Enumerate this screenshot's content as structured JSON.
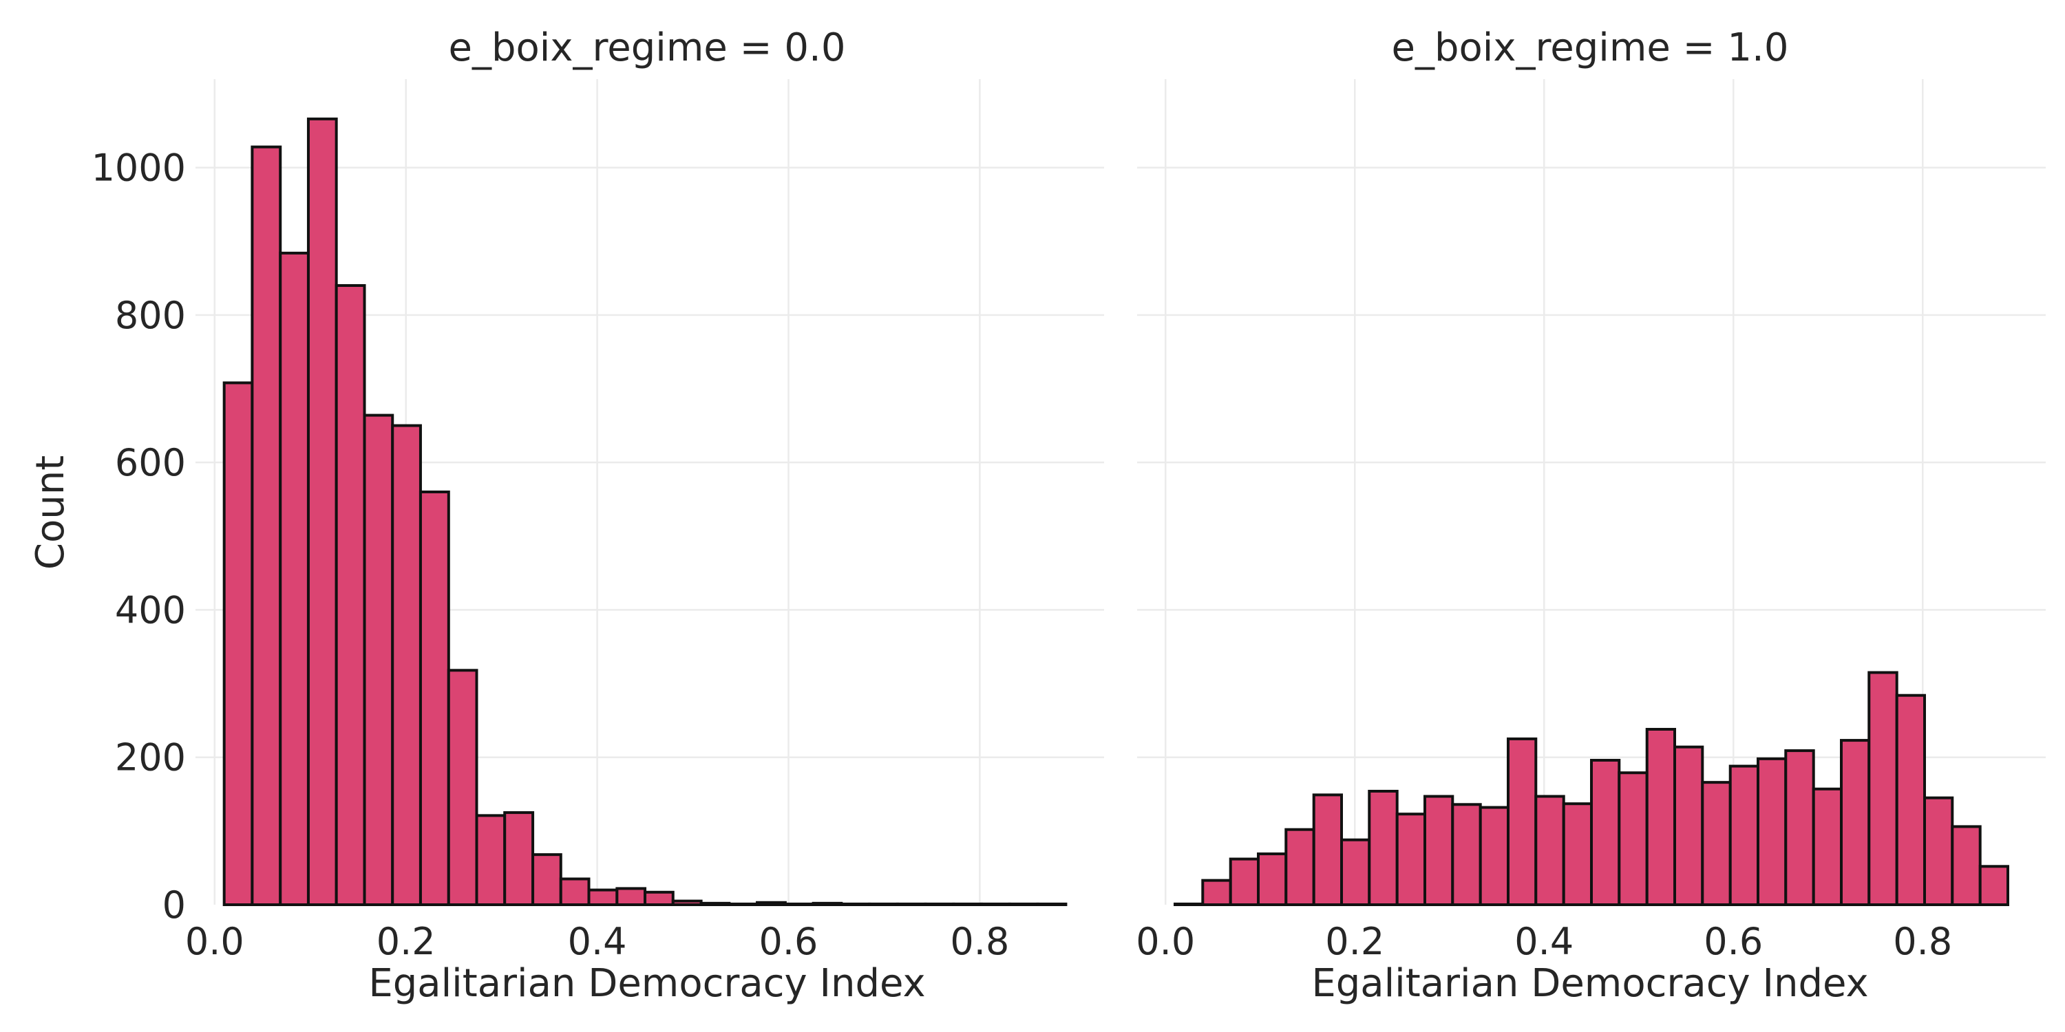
{
  "colors": {
    "bar_fill": "#db4472",
    "bar_edge": "#111111",
    "grid": "#ebebeb",
    "text": "#262626"
  },
  "chart_data": [
    {
      "type": "bar",
      "title": "e_boix_regime = 0.0",
      "xlabel": "Egalitarian Democracy Index",
      "ylabel": "Count",
      "xlim": [
        -0.02,
        0.93
      ],
      "ylim": [
        0,
        1120
      ],
      "bin_edges": [
        0.01,
        0.0393,
        0.0687,
        0.098,
        0.1273,
        0.1567,
        0.186,
        0.2153,
        0.2447,
        0.274,
        0.3033,
        0.3327,
        0.362,
        0.3913,
        0.4207,
        0.45,
        0.4793,
        0.5087,
        0.538,
        0.5673,
        0.5967,
        0.626,
        0.6553,
        0.6847,
        0.714,
        0.7433,
        0.7727,
        0.802,
        0.8313,
        0.8607,
        0.89
      ],
      "values": [
        708,
        1028,
        884,
        1066,
        840,
        664,
        650,
        560,
        318,
        121,
        125,
        68,
        35,
        20,
        22,
        17,
        5,
        2,
        1,
        3,
        1,
        2,
        1,
        1,
        1,
        1,
        1,
        1,
        1,
        1
      ],
      "xticks": [
        "0.0",
        "0.2",
        "0.4",
        "0.6",
        "0.8"
      ],
      "xtick_values": [
        0.0,
        0.2,
        0.4,
        0.6,
        0.8
      ],
      "yticks": [
        "0",
        "200",
        "400",
        "600",
        "800",
        "1000"
      ],
      "ytick_values": [
        0,
        200,
        400,
        600,
        800,
        1000
      ],
      "grid": true
    },
    {
      "type": "bar",
      "title": "e_boix_regime = 1.0",
      "xlabel": "Egalitarian Democracy Index",
      "ylabel": "",
      "xlim": [
        -0.03,
        0.93
      ],
      "ylim": [
        0,
        1120
      ],
      "bin_edges": [
        0.01,
        0.0393,
        0.0687,
        0.098,
        0.1273,
        0.1567,
        0.186,
        0.2153,
        0.2447,
        0.274,
        0.3033,
        0.3327,
        0.362,
        0.3913,
        0.4207,
        0.45,
        0.4793,
        0.5087,
        0.538,
        0.5673,
        0.5967,
        0.626,
        0.6553,
        0.6847,
        0.714,
        0.7433,
        0.7727,
        0.802,
        0.8313,
        0.8607,
        0.89
      ],
      "values": [
        1,
        33,
        62,
        69,
        102,
        149,
        88,
        154,
        123,
        147,
        136,
        132,
        225,
        147,
        137,
        196,
        179,
        238,
        214,
        166,
        188,
        198,
        209,
        157,
        223,
        315,
        284,
        145,
        106,
        52
      ],
      "xticks": [
        "0.0",
        "0.2",
        "0.4",
        "0.6",
        "0.8"
      ],
      "xtick_values": [
        0.0,
        0.2,
        0.4,
        0.6,
        0.8
      ],
      "yticks": [],
      "ytick_values": [
        0,
        200,
        400,
        600,
        800,
        1000
      ],
      "grid": true
    }
  ]
}
